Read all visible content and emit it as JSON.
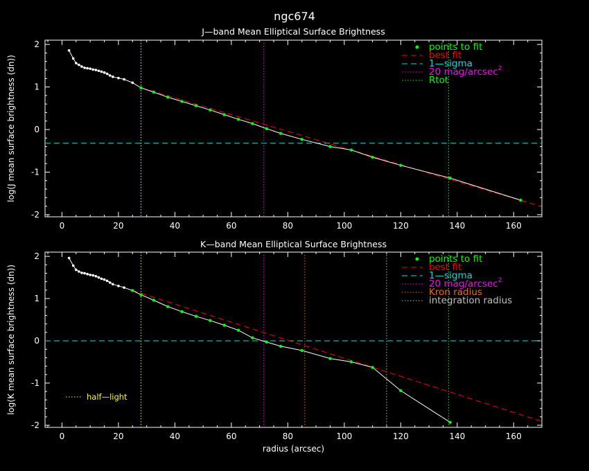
{
  "figure_title": "ngc674",
  "colors": {
    "background": "#000000",
    "axes": "#ffffff",
    "data": "#ffffff",
    "fit_points": "#00ff00",
    "best_fit": "#ff0000",
    "sigma": "#00e0e0",
    "mag20": "#ff00ff",
    "rtot": "#00ff00",
    "half_light": "#ffff00",
    "kron": "#ff6600",
    "integration": "#c0c0c0"
  },
  "chart_data": [
    {
      "type": "line",
      "title": "J—band Mean Elliptical Surface Brightness",
      "xlabel": "",
      "ylabel": "log(J mean surface brightness (dn))",
      "xlim": [
        -6,
        170
      ],
      "ylim": [
        -2.05,
        2.1
      ],
      "x_ticks": [
        0,
        20,
        40,
        60,
        80,
        100,
        120,
        140,
        160
      ],
      "y_ticks": [
        -2,
        -1,
        0,
        1,
        2
      ],
      "legend_placement": "top-right",
      "profile_x": [
        2.5,
        4,
        5,
        6,
        7,
        8,
        9,
        10,
        11,
        12,
        13,
        14,
        15,
        16,
        17,
        18,
        20,
        22,
        25,
        28,
        32.5,
        37.5,
        42.5,
        47.5,
        52.5,
        57.5,
        62.5,
        67.5,
        72.5,
        77.5,
        85,
        95,
        102.5,
        110,
        120,
        137.5,
        162.5
      ],
      "profile_y": [
        1.86,
        1.67,
        1.56,
        1.52,
        1.48,
        1.45,
        1.44,
        1.43,
        1.41,
        1.4,
        1.38,
        1.36,
        1.34,
        1.31,
        1.27,
        1.24,
        1.21,
        1.18,
        1.1,
        0.98,
        0.88,
        0.76,
        0.66,
        0.56,
        0.46,
        0.35,
        0.24,
        0.14,
        0.02,
        -0.09,
        -0.23,
        -0.4,
        -0.48,
        -0.65,
        -0.84,
        -1.14,
        -1.66
      ],
      "fit_points_x": [
        28,
        32.5,
        37.5,
        42.5,
        47.5,
        52.5,
        57.5,
        62.5,
        67.5,
        72.5,
        77.5,
        85,
        95,
        102.5,
        110,
        120,
        137.5,
        162.5
      ],
      "fit_points_y": [
        0.98,
        0.88,
        0.76,
        0.66,
        0.56,
        0.46,
        0.35,
        0.24,
        0.14,
        0.02,
        -0.09,
        -0.23,
        -0.4,
        -0.48,
        -0.65,
        -0.84,
        -1.14,
        -1.66
      ],
      "best_fit_line": {
        "x": [
          28,
          170
        ],
        "y": [
          0.98,
          -1.81
        ]
      },
      "one_sigma_y": -0.32,
      "mag20_x": 71.5,
      "vlines": [
        {
          "key": "half_light",
          "x": 28
        },
        {
          "key": "rtot",
          "x": 137
        }
      ],
      "legend": [
        {
          "key": "fit_points",
          "style": "dot",
          "label": "points to fit"
        },
        {
          "key": "best_fit",
          "style": "dashed",
          "label": "best fit"
        },
        {
          "key": "sigma",
          "style": "dashed",
          "label": "1—sigma"
        },
        {
          "key": "mag20",
          "style": "dotted",
          "label": "20 mag/arcsec",
          "sup": "2"
        },
        {
          "key": "rtot",
          "style": "dotted",
          "label": "Rtot"
        }
      ]
    },
    {
      "type": "line",
      "title": "K—band Mean Elliptical Surface Brightness",
      "xlabel": "radius (arcsec)",
      "ylabel": "log(K mean surface brightness (dn))",
      "xlim": [
        -6,
        170
      ],
      "ylim": [
        -2.05,
        2.1
      ],
      "x_ticks": [
        0,
        20,
        40,
        60,
        80,
        100,
        120,
        140,
        160
      ],
      "y_ticks": [
        -2,
        -1,
        0,
        1,
        2
      ],
      "legend_placement": "top-right",
      "profile_x": [
        2.5,
        4,
        5,
        6,
        7,
        8,
        9,
        10,
        11,
        12,
        13,
        14,
        15,
        16,
        17,
        18,
        20,
        22,
        25,
        28,
        32.5,
        37.5,
        42.5,
        47.5,
        52.5,
        57.5,
        62.5,
        67.5,
        72.5,
        77.5,
        85,
        95,
        102.5,
        110,
        120,
        137.5
      ],
      "profile_y": [
        1.96,
        1.78,
        1.68,
        1.64,
        1.61,
        1.6,
        1.58,
        1.56,
        1.55,
        1.53,
        1.5,
        1.47,
        1.45,
        1.42,
        1.38,
        1.34,
        1.3,
        1.26,
        1.19,
        1.09,
        0.96,
        0.81,
        0.69,
        0.58,
        0.48,
        0.37,
        0.25,
        0.07,
        -0.03,
        -0.13,
        -0.23,
        -0.42,
        -0.5,
        -0.63,
        -1.18,
        -1.93
      ],
      "fit_points_x": [
        25,
        28,
        32.5,
        37.5,
        42.5,
        47.5,
        52.5,
        57.5,
        62.5,
        67.5,
        72.5,
        77.5,
        85,
        95,
        102.5,
        110,
        120,
        137.5
      ],
      "fit_points_y": [
        1.19,
        1.09,
        0.96,
        0.81,
        0.69,
        0.58,
        0.48,
        0.37,
        0.25,
        0.07,
        -0.03,
        -0.13,
        -0.23,
        -0.42,
        -0.5,
        -0.63,
        -1.18,
        -1.93
      ],
      "best_fit_line": {
        "x": [
          25,
          170
        ],
        "y": [
          1.19,
          -1.91
        ]
      },
      "one_sigma_y": 0.0,
      "mag20_x": 71.5,
      "vlines": [
        {
          "key": "half_light",
          "x": 28
        },
        {
          "key": "kron",
          "x": 86
        },
        {
          "key": "integration",
          "x": 115
        },
        {
          "key": "rtot",
          "x": 137
        }
      ],
      "legend": [
        {
          "key": "fit_points",
          "style": "dot",
          "label": "points to fit"
        },
        {
          "key": "best_fit",
          "style": "dashed",
          "label": "best fit"
        },
        {
          "key": "sigma",
          "style": "dashed",
          "label": "1—sigma"
        },
        {
          "key": "mag20",
          "style": "dotted",
          "label": "20 mag/arcsec",
          "sup": "2"
        },
        {
          "key": "kron",
          "style": "dotted",
          "label": "Kron radius"
        },
        {
          "key": "integration",
          "style": "dotted",
          "label": "integration radius"
        }
      ],
      "extra_legend": {
        "key": "half_light",
        "style": "dotted",
        "label": "half—light"
      }
    }
  ]
}
